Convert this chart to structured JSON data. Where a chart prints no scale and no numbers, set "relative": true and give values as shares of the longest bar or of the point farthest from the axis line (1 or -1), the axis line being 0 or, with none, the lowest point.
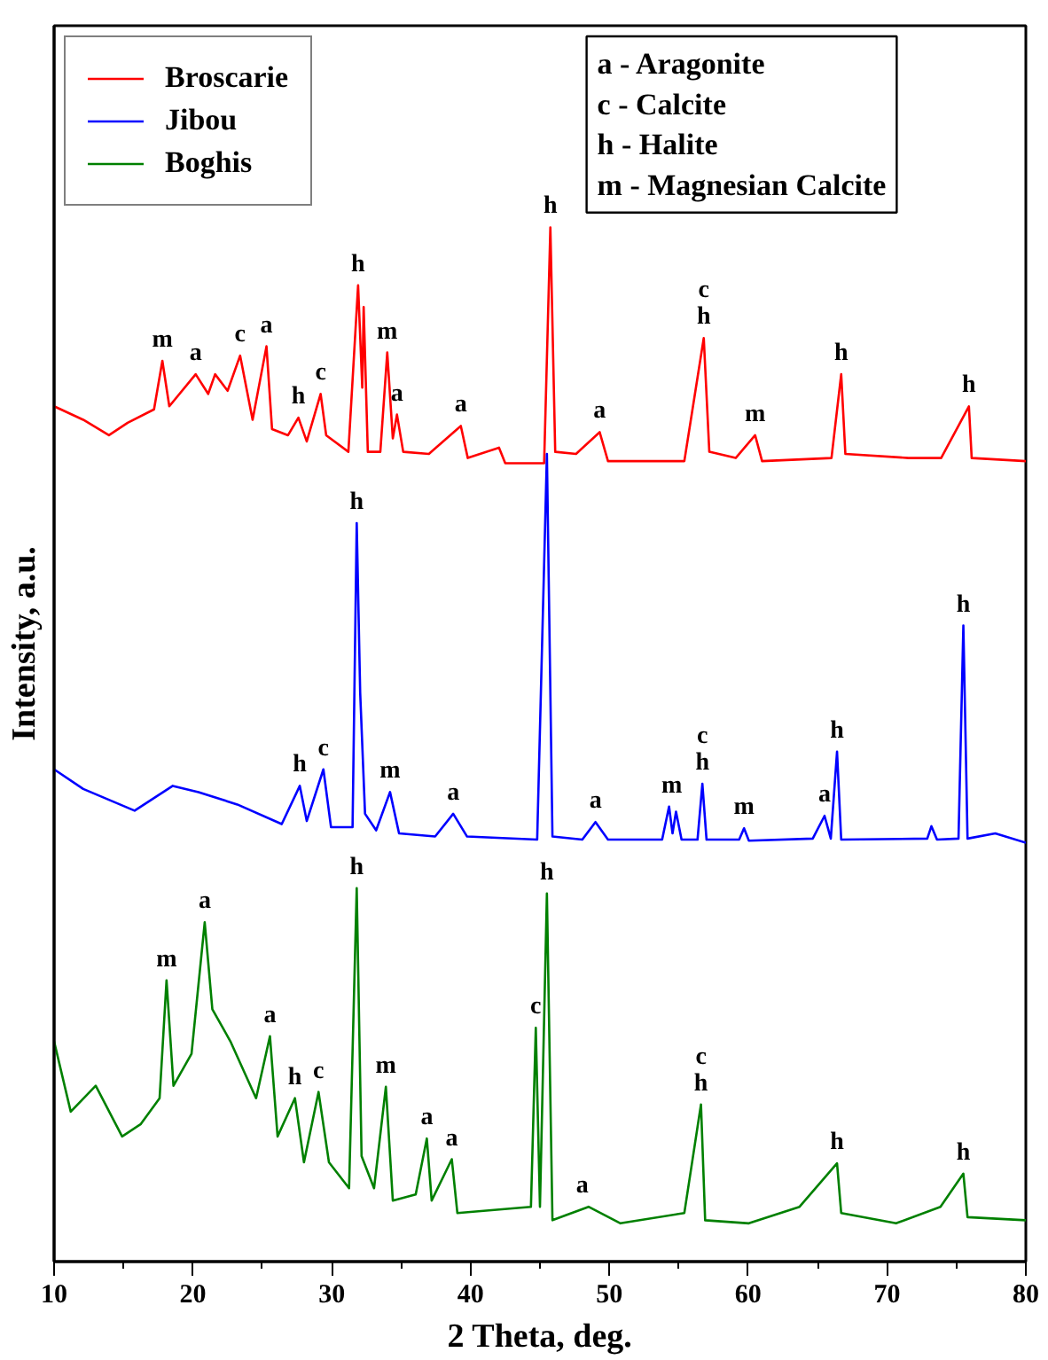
{
  "chart_data": {
    "type": "line",
    "relative": true,
    "xlabel": "2 Theta, deg.",
    "ylabel": "Intensity, a.u.",
    "xlim": [
      10,
      80
    ],
    "xticks": [
      10,
      20,
      30,
      40,
      50,
      60,
      70,
      80
    ],
    "tick_labels": "x",
    "grid": false,
    "legend": "top left",
    "line_style": "solid",
    "marker": "none",
    "series": [
      {
        "name": "Broscarie",
        "color": "#ff0000",
        "x": [
          10,
          12.1,
          13.95,
          15.3,
          17.2,
          17.8,
          18.3,
          20.2,
          21.1,
          21.6,
          22.5,
          23.4,
          24.3,
          25.3,
          25.7,
          26.85,
          27.6,
          28.2,
          29.2,
          29.6,
          31.2,
          31.9,
          32.2,
          32.3,
          32.6,
          33.5,
          34.0,
          34.4,
          34.7,
          35.15,
          37.0,
          39.3,
          39.8,
          42.05,
          42.5,
          45.3,
          45.75,
          46.1,
          47.6,
          49.3,
          49.9,
          55.4,
          56.8,
          57.2,
          59.1,
          60.5,
          61.0,
          66.0,
          66.7,
          67.0,
          71.55,
          73.9,
          75.9,
          76.1,
          80
        ],
        "values": [
          0.827,
          0.814,
          0.799,
          0.811,
          0.824,
          0.871,
          0.827,
          0.858,
          0.839,
          0.858,
          0.842,
          0.876,
          0.814,
          0.885,
          0.805,
          0.799,
          0.816,
          0.793,
          0.839,
          0.799,
          0.783,
          0.944,
          0.845,
          0.923,
          0.783,
          0.783,
          0.879,
          0.796,
          0.819,
          0.783,
          0.781,
          0.808,
          0.777,
          0.787,
          0.772,
          0.772,
          1.0,
          0.783,
          0.781,
          0.802,
          0.774,
          0.774,
          0.893,
          0.783,
          0.777,
          0.799,
          0.774,
          0.777,
          0.858,
          0.781,
          0.777,
          0.777,
          0.827,
          0.777,
          0.774
        ]
      },
      {
        "name": "Jibou",
        "color": "#0000ff",
        "x": [
          10,
          12.1,
          15.8,
          18.55,
          20.4,
          23.2,
          26.4,
          27.7,
          28.2,
          29.4,
          29.95,
          31.5,
          31.8,
          32.05,
          32.4,
          33.2,
          34.2,
          34.85,
          37.45,
          38.75,
          39.75,
          44.8,
          45.5,
          45.9,
          48.05,
          49.0,
          49.9,
          53.8,
          54.3,
          54.55,
          54.8,
          55.2,
          56.35,
          56.7,
          57.0,
          59.35,
          59.7,
          60.05,
          64.65,
          65.5,
          65.95,
          66.4,
          66.7,
          72.9,
          73.2,
          73.6,
          75.15,
          75.5,
          75.8,
          77.8,
          80
        ],
        "values": [
          0.476,
          0.457,
          0.436,
          0.46,
          0.454,
          0.442,
          0.423,
          0.46,
          0.426,
          0.476,
          0.42,
          0.42,
          0.714,
          0.55,
          0.433,
          0.417,
          0.454,
          0.414,
          0.411,
          0.433,
          0.411,
          0.408,
          0.781,
          0.411,
          0.408,
          0.425,
          0.408,
          0.408,
          0.44,
          0.414,
          0.435,
          0.408,
          0.408,
          0.462,
          0.408,
          0.408,
          0.419,
          0.407,
          0.409,
          0.431,
          0.409,
          0.493,
          0.408,
          0.409,
          0.421,
          0.408,
          0.409,
          0.615,
          0.409,
          0.414,
          0.405
        ]
      },
      {
        "name": "Boghis",
        "color": "#008000",
        "x": [
          10,
          11.2,
          13.0,
          14.9,
          16.25,
          17.6,
          18.1,
          18.6,
          19.9,
          20.85,
          21.4,
          22.7,
          24.55,
          25.55,
          26.1,
          27.35,
          28.0,
          29.05,
          29.8,
          31.25,
          31.8,
          32.15,
          33.05,
          33.9,
          34.4,
          36.05,
          36.85,
          37.2,
          38.65,
          39.05,
          44.35,
          44.7,
          45.0,
          45.5,
          45.9,
          48.5,
          50.8,
          55.4,
          56.6,
          56.9,
          60.05,
          63.7,
          66.4,
          66.7,
          70.65,
          73.85,
          75.5,
          75.8,
          80
        ],
        "values": [
          0.213,
          0.145,
          0.17,
          0.121,
          0.133,
          0.158,
          0.272,
          0.17,
          0.201,
          0.328,
          0.244,
          0.213,
          0.158,
          0.218,
          0.121,
          0.158,
          0.096,
          0.164,
          0.096,
          0.071,
          0.361,
          0.102,
          0.071,
          0.169,
          0.059,
          0.065,
          0.119,
          0.059,
          0.099,
          0.047,
          0.053,
          0.226,
          0.053,
          0.356,
          0.04,
          0.053,
          0.037,
          0.047,
          0.152,
          0.04,
          0.037,
          0.053,
          0.095,
          0.047,
          0.037,
          0.053,
          0.085,
          0.043,
          0.04
        ]
      }
    ],
    "annotations": [
      "a - Aragonite",
      "c - Calcite",
      "h - Halite",
      "m - Magnesian Calcite",
      {
        "text": "m",
        "x": 17.8,
        "y": 0.871
      },
      {
        "text": "a",
        "x": 20.2,
        "y": 0.858
      },
      {
        "text": "c",
        "x": 23.4,
        "y": 0.876
      },
      {
        "text": "a",
        "x": 25.3,
        "y": 0.885
      },
      {
        "text": "h",
        "x": 27.6,
        "y": 0.816
      },
      {
        "text": "c",
        "x": 29.2,
        "y": 0.839
      },
      {
        "text": "h",
        "x": 31.9,
        "y": 0.944
      },
      {
        "text": "m",
        "x": 34.0,
        "y": 0.879
      },
      {
        "text": "a",
        "x": 34.7,
        "y": 0.819
      },
      {
        "text": "a",
        "x": 39.3,
        "y": 0.808
      },
      {
        "text": "h",
        "x": 45.75,
        "y": 1.0
      },
      {
        "text": "a",
        "x": 49.3,
        "y": 0.802
      },
      {
        "text": "c\nh",
        "x": 56.8,
        "y": 0.893
      },
      {
        "text": "m",
        "x": 60.5,
        "y": 0.799
      },
      {
        "text": "h",
        "x": 66.7,
        "y": 0.858
      },
      {
        "text": "h",
        "x": 75.9,
        "y": 0.827
      },
      {
        "text": "h",
        "x": 27.7,
        "y": 0.46
      },
      {
        "text": "c",
        "x": 29.4,
        "y": 0.476
      },
      {
        "text": "h",
        "x": 31.8,
        "y": 0.714
      },
      {
        "text": "m",
        "x": 34.2,
        "y": 0.454
      },
      {
        "text": "a",
        "x": 38.75,
        "y": 0.433
      },
      {
        "text": "a",
        "x": 49.0,
        "y": 0.425
      },
      {
        "text": "m",
        "x": 54.5,
        "y": 0.44
      },
      {
        "text": "c\nh",
        "x": 56.7,
        "y": 0.462
      },
      {
        "text": "m",
        "x": 59.7,
        "y": 0.419
      },
      {
        "text": "a",
        "x": 65.5,
        "y": 0.431
      },
      {
        "text": "h",
        "x": 66.4,
        "y": 0.493
      },
      {
        "text": "h",
        "x": 75.5,
        "y": 0.615
      },
      {
        "text": "m",
        "x": 18.1,
        "y": 0.272
      },
      {
        "text": "a",
        "x": 20.85,
        "y": 0.328
      },
      {
        "text": "a",
        "x": 25.55,
        "y": 0.218
      },
      {
        "text": "h",
        "x": 27.35,
        "y": 0.158
      },
      {
        "text": "c",
        "x": 29.05,
        "y": 0.164
      },
      {
        "text": "h",
        "x": 31.8,
        "y": 0.361
      },
      {
        "text": "m",
        "x": 33.9,
        "y": 0.169
      },
      {
        "text": "a",
        "x": 36.85,
        "y": 0.119
      },
      {
        "text": "a",
        "x": 38.65,
        "y": 0.099
      },
      {
        "text": "c",
        "x": 44.7,
        "y": 0.226
      },
      {
        "text": "h",
        "x": 45.5,
        "y": 0.356
      },
      {
        "text": "a",
        "x": 48.05,
        "y": 0.053
      },
      {
        "text": "c\nh",
        "x": 56.6,
        "y": 0.152
      },
      {
        "text": "h",
        "x": 66.4,
        "y": 0.095
      },
      {
        "text": "h",
        "x": 75.5,
        "y": 0.085
      }
    ]
  }
}
